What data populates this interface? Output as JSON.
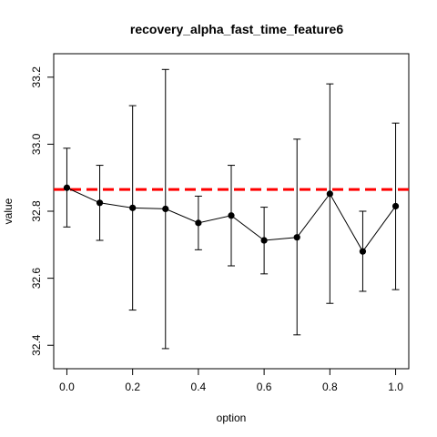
{
  "chart_data": {
    "type": "scatter",
    "title": "recovery_alpha_fast_time_feature6",
    "xlabel": "option",
    "ylabel": "value",
    "xlim": [
      -0.04,
      1.04
    ],
    "ylim": [
      32.33,
      33.27
    ],
    "x_ticks": [
      "0.0",
      "0.2",
      "0.4",
      "0.6",
      "0.8",
      "1.0"
    ],
    "y_ticks": [
      "32.4",
      "32.6",
      "32.8",
      "33.0",
      "33.2"
    ],
    "grid": false,
    "legend": "none",
    "series": [
      {
        "x": [
          0.0,
          0.1,
          0.2,
          0.3,
          0.4,
          0.5,
          0.6,
          0.7,
          0.8,
          0.9,
          1.0
        ],
        "values": [
          32.87,
          32.825,
          32.81,
          32.807,
          32.765,
          32.787,
          32.713,
          32.722,
          32.852,
          32.68,
          32.815
        ],
        "lower": [
          32.753,
          32.713,
          32.505,
          32.39,
          32.685,
          32.637,
          32.613,
          32.431,
          32.525,
          32.561,
          32.566
        ],
        "upper": [
          32.988,
          32.937,
          33.115,
          33.223,
          32.845,
          32.937,
          32.812,
          33.015,
          33.18,
          32.8,
          33.063
        ],
        "color": "#000000"
      }
    ],
    "reference_line": {
      "y": 32.865,
      "color": "#ff0000",
      "style": "dashed"
    }
  }
}
